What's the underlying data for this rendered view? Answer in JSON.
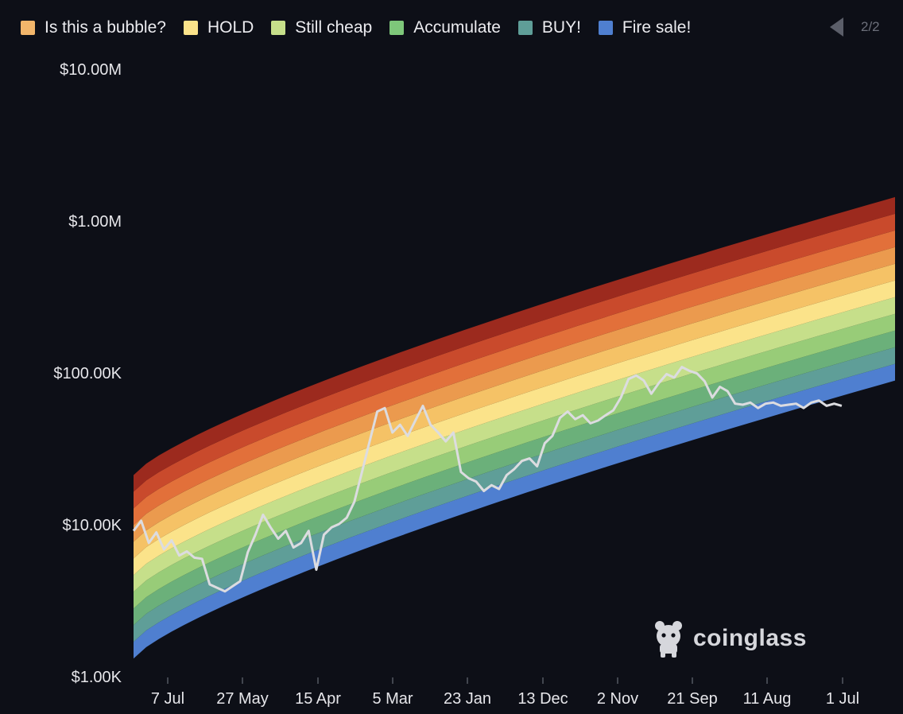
{
  "legend": [
    {
      "label": "Is this a bubble?",
      "color": "#f2b66b"
    },
    {
      "label": "HOLD",
      "color": "#fbe38a"
    },
    {
      "label": "Still cheap",
      "color": "#c6df8a"
    },
    {
      "label": "Accumulate",
      "color": "#7ec77a"
    },
    {
      "label": "BUY!",
      "color": "#5f9e98"
    },
    {
      "label": "Fire sale!",
      "color": "#4f7fd0"
    }
  ],
  "pager": {
    "text": "2/2"
  },
  "brand": {
    "name": "coinglass"
  },
  "chart_data": {
    "type": "area",
    "y_scale": "log",
    "ylim": [
      1000,
      10000000
    ],
    "y_ticks": [
      "$1.00K",
      "$10.00K",
      "$100.00K",
      "$1.00M",
      "$10.00M"
    ],
    "x_ticks": [
      "7 Jul",
      "27 May",
      "15 Apr",
      "5 Mar",
      "23 Jan",
      "13 Dec",
      "2 Nov",
      "21 Sep",
      "11 Aug",
      "1 Jul"
    ],
    "grid": false,
    "legend_position": "top",
    "bands": {
      "colors": [
        "#4f7fd0",
        "#5f9e98",
        "#6bb07a",
        "#98cc78",
        "#c6df8a",
        "#fbe38a",
        "#f5c266",
        "#eb9a4e",
        "#e2703a",
        "#c94a2c",
        "#9c2a1e"
      ],
      "lower_start": 1300,
      "lower_end": 88000,
      "upper_start": 21000,
      "upper_end": 1420000
    },
    "price_series": {
      "name": "Price",
      "color": "#dcdce0",
      "x": [
        0,
        0.01,
        0.02,
        0.03,
        0.04,
        0.05,
        0.06,
        0.07,
        0.08,
        0.09,
        0.1,
        0.12,
        0.14,
        0.15,
        0.16,
        0.17,
        0.18,
        0.19,
        0.2,
        0.21,
        0.22,
        0.23,
        0.24,
        0.25,
        0.26,
        0.27,
        0.28,
        0.29,
        0.3,
        0.31,
        0.32,
        0.33,
        0.34,
        0.35,
        0.36,
        0.37,
        0.38,
        0.39,
        0.4,
        0.41,
        0.42,
        0.43,
        0.44,
        0.45,
        0.46,
        0.47,
        0.48,
        0.49,
        0.5,
        0.51,
        0.52,
        0.53,
        0.54,
        0.55,
        0.56,
        0.57,
        0.58,
        0.59,
        0.6,
        0.61,
        0.62,
        0.63,
        0.64,
        0.65,
        0.66,
        0.67,
        0.68,
        0.69,
        0.7,
        0.71,
        0.72,
        0.73,
        0.74,
        0.75,
        0.76,
        0.77,
        0.78,
        0.79,
        0.8,
        0.81,
        0.82,
        0.83,
        0.84,
        0.85,
        0.86,
        0.87,
        0.88,
        0.89,
        0.9,
        0.91,
        0.92,
        0.93
      ],
      "values": [
        9000,
        10500,
        7500,
        8800,
        6800,
        7800,
        6200,
        6600,
        6000,
        5900,
        4000,
        3600,
        4200,
        6500,
        8500,
        11500,
        9500,
        8000,
        9000,
        7000,
        7500,
        9000,
        5000,
        8500,
        9500,
        10000,
        11000,
        14000,
        22000,
        35000,
        55000,
        58000,
        40000,
        45000,
        38000,
        48000,
        60000,
        45000,
        40000,
        35000,
        40000,
        22000,
        20000,
        19000,
        16500,
        18000,
        17000,
        21000,
        23000,
        26000,
        27000,
        24000,
        34000,
        38000,
        50000,
        55000,
        49000,
        52000,
        46000,
        48000,
        52000,
        56000,
        68000,
        90000,
        95000,
        88000,
        72000,
        85000,
        97000,
        92000,
        108000,
        102000,
        98000,
        87000,
        68000,
        80000,
        75000,
        62000,
        61000,
        63000,
        58000,
        62000,
        63000,
        60000,
        61000,
        62000,
        58000,
        63000,
        65000,
        60000,
        62000,
        60000
      ]
    }
  }
}
